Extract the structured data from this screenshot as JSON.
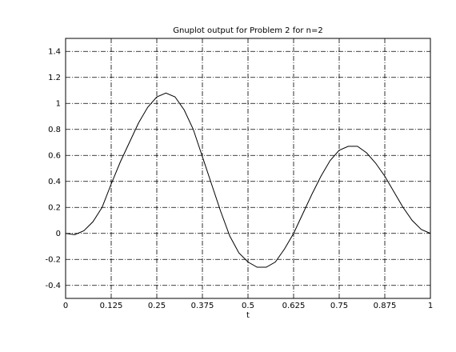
{
  "chart_data": {
    "type": "line",
    "title": "Gnuplot output for Problem 2 for n=2",
    "x_label": "t",
    "x": [
      0,
      0.025,
      0.05,
      0.075,
      0.1,
      0.125,
      0.15,
      0.175,
      0.2,
      0.225,
      0.25,
      0.275,
      0.3,
      0.325,
      0.35,
      0.375,
      0.4,
      0.425,
      0.45,
      0.475,
      0.5,
      0.525,
      0.55,
      0.575,
      0.6,
      0.625,
      0.65,
      0.675,
      0.7,
      0.725,
      0.75,
      0.775,
      0.8,
      0.825,
      0.85,
      0.875,
      0.9,
      0.925,
      0.95,
      0.975,
      1
    ],
    "series": [
      {
        "color": "#000000",
        "values": [
          0,
          -0.01,
          0.02,
          0.09,
          0.2,
          0.38,
          0.55,
          0.7,
          0.85,
          0.97,
          1.05,
          1.08,
          1.05,
          0.95,
          0.8,
          0.59,
          0.38,
          0.17,
          -0.02,
          -0.15,
          -0.22,
          -0.26,
          -0.26,
          -0.22,
          -0.12,
          0.0,
          0.15,
          0.3,
          0.44,
          0.56,
          0.64,
          0.67,
          0.67,
          0.62,
          0.54,
          0.44,
          0.32,
          0.2,
          0.1,
          0.03,
          0
        ]
      }
    ],
    "xlim": [
      0,
      1
    ],
    "ylim": [
      -0.5,
      1.5
    ],
    "xticks": [
      0,
      0.125,
      0.25,
      0.375,
      0.5,
      0.625,
      0.75,
      0.875,
      1
    ],
    "yticks": [
      -0.4,
      -0.2,
      0,
      0.2,
      0.4,
      0.6,
      0.8,
      1,
      1.2,
      1.4
    ],
    "grid": true
  }
}
